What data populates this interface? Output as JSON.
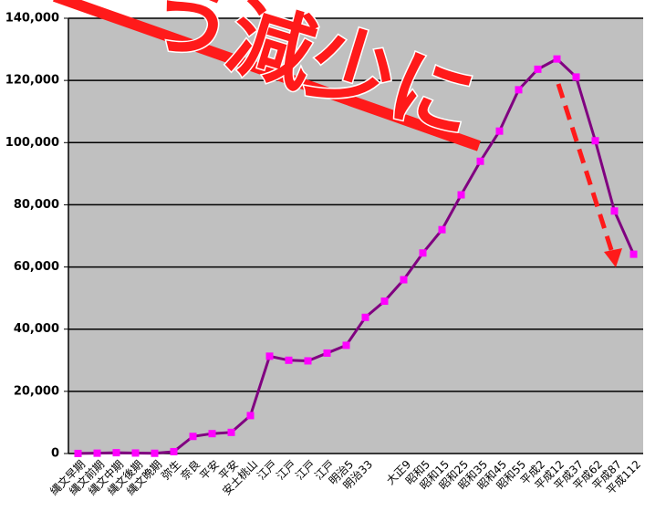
{
  "chart_data": {
    "type": "line",
    "annotation": "う減少に",
    "categories": [
      "縄文早期",
      "縄文前期",
      "縄文中期",
      "縄文後期",
      "縄文晩期",
      "弥生",
      "奈良",
      "平安",
      "平安",
      "安土桃山",
      "江戸",
      "江戸",
      "江戸",
      "江戸",
      "明治5",
      "明治33",
      null,
      "大正9",
      "昭和5",
      "昭和15",
      "昭和25",
      "昭和35",
      "昭和45",
      "昭和55",
      "平成2",
      "平成12",
      "平成37",
      "平成62",
      "平成87",
      "平成112"
    ],
    "series": [
      {
        "color": "#800080",
        "marker_color": "#ff00ff",
        "values": [
          20,
          110,
          260,
          160,
          80,
          600,
          5500,
          6400,
          6800,
          12200,
          31300,
          30000,
          29800,
          32300,
          34800,
          43800,
          49000,
          55900,
          64500,
          72000,
          83200,
          94000,
          103700,
          117000,
          123600,
          126900,
          121100,
          100600,
          78000,
          64100
        ]
      }
    ],
    "ylim": [
      0,
      140000
    ],
    "yticks": [
      {
        "value": 0,
        "label": "0"
      },
      {
        "value": 20000,
        "label": "20,000"
      },
      {
        "value": 40000,
        "label": "40,000"
      },
      {
        "value": 60000,
        "label": "60,000"
      },
      {
        "value": 80000,
        "label": "80,000"
      },
      {
        "value": 100000,
        "label": "100,000"
      },
      {
        "value": 120000,
        "label": "120,000"
      },
      {
        "value": 140000,
        "label": "140,000"
      }
    ],
    "grid": true
  }
}
